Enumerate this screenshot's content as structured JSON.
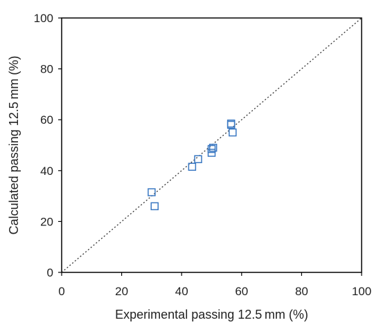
{
  "chart_data": {
    "type": "scatter",
    "xlabel": "Experimental passing 12.5 mm  (%)",
    "ylabel": "Calculated passing 12.5 mm  (%)",
    "xlim": [
      0,
      100
    ],
    "ylim": [
      0,
      100
    ],
    "xticks": [
      0,
      20,
      40,
      60,
      80,
      100
    ],
    "yticks": [
      0,
      20,
      40,
      60,
      80,
      100
    ],
    "grid": false,
    "reference_line": {
      "from": [
        0,
        0
      ],
      "to": [
        100,
        100
      ],
      "style": "dotted",
      "color": "#333333"
    },
    "series": [
      {
        "marker": "open-square",
        "color": "#3a78c2",
        "points": [
          {
            "x": 30,
            "y": 31.5
          },
          {
            "x": 31,
            "y": 26
          },
          {
            "x": 43.5,
            "y": 41.5
          },
          {
            "x": 45.5,
            "y": 44.5
          },
          {
            "x": 50,
            "y": 47
          },
          {
            "x": 50,
            "y": 48.5
          },
          {
            "x": 50.5,
            "y": 49
          },
          {
            "x": 56.5,
            "y": 58.5
          },
          {
            "x": 56.5,
            "y": 58
          },
          {
            "x": 57,
            "y": 55
          }
        ]
      }
    ]
  }
}
